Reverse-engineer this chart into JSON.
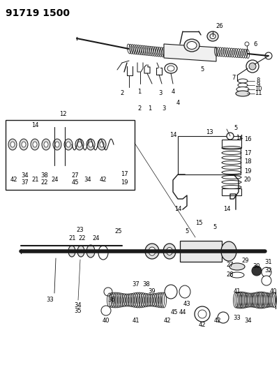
{
  "title": "91719 1500",
  "background_color": "#ffffff",
  "title_fontsize": 10,
  "title_fontweight": "bold",
  "fig_width": 4.0,
  "fig_height": 5.33,
  "dpi": 100,
  "diagram_color": "#1a1a1a",
  "label_fontsize": 6.0,
  "label_color": "#000000"
}
